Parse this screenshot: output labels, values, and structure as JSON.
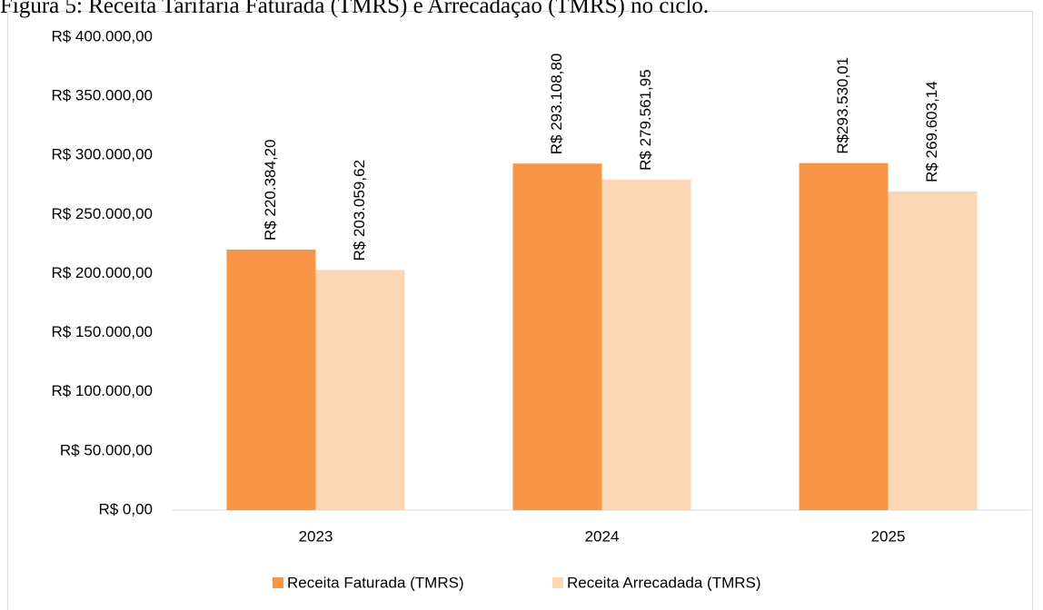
{
  "chart_data": {
    "type": "bar",
    "title": "Figura 5: Receita Tarifária Faturada (TMRS) e Arrecadação (TMRS) no ciclo.",
    "categories": [
      "2023",
      "2024",
      "2025"
    ],
    "series": [
      {
        "name": "Receita Faturada (TMRS)",
        "color": "#f79646",
        "values": [
          220384.2,
          293108.8,
          293530.01
        ],
        "value_labels": [
          "R$ 220.384,20",
          "R$ 293.108,80",
          "R$293.530,01"
        ]
      },
      {
        "name": "Receita Arrecadada (TMRS)",
        "color": "#fcd5b4",
        "values": [
          203059.62,
          279561.95,
          269603.14
        ],
        "value_labels": [
          "R$ 203.059,62",
          "R$ 279.561,95",
          "R$ 269.603,14"
        ]
      }
    ],
    "ylim": [
      0,
      400000
    ],
    "yticks": [
      {
        "value": 0,
        "label": "R$ 0,00"
      },
      {
        "value": 50000,
        "label": "R$ 50.000,00"
      },
      {
        "value": 100000,
        "label": "R$ 100.000,00"
      },
      {
        "value": 150000,
        "label": "R$ 150.000,00"
      },
      {
        "value": 200000,
        "label": "R$ 200.000,00"
      },
      {
        "value": 250000,
        "label": "R$ 250.000,00"
      },
      {
        "value": 300000,
        "label": "R$ 300.000,00"
      },
      {
        "value": 350000,
        "label": "R$ 350.000,00"
      },
      {
        "value": 400000,
        "label": "R$ 400.000,00"
      }
    ],
    "grid": false,
    "legend": "bottom"
  }
}
